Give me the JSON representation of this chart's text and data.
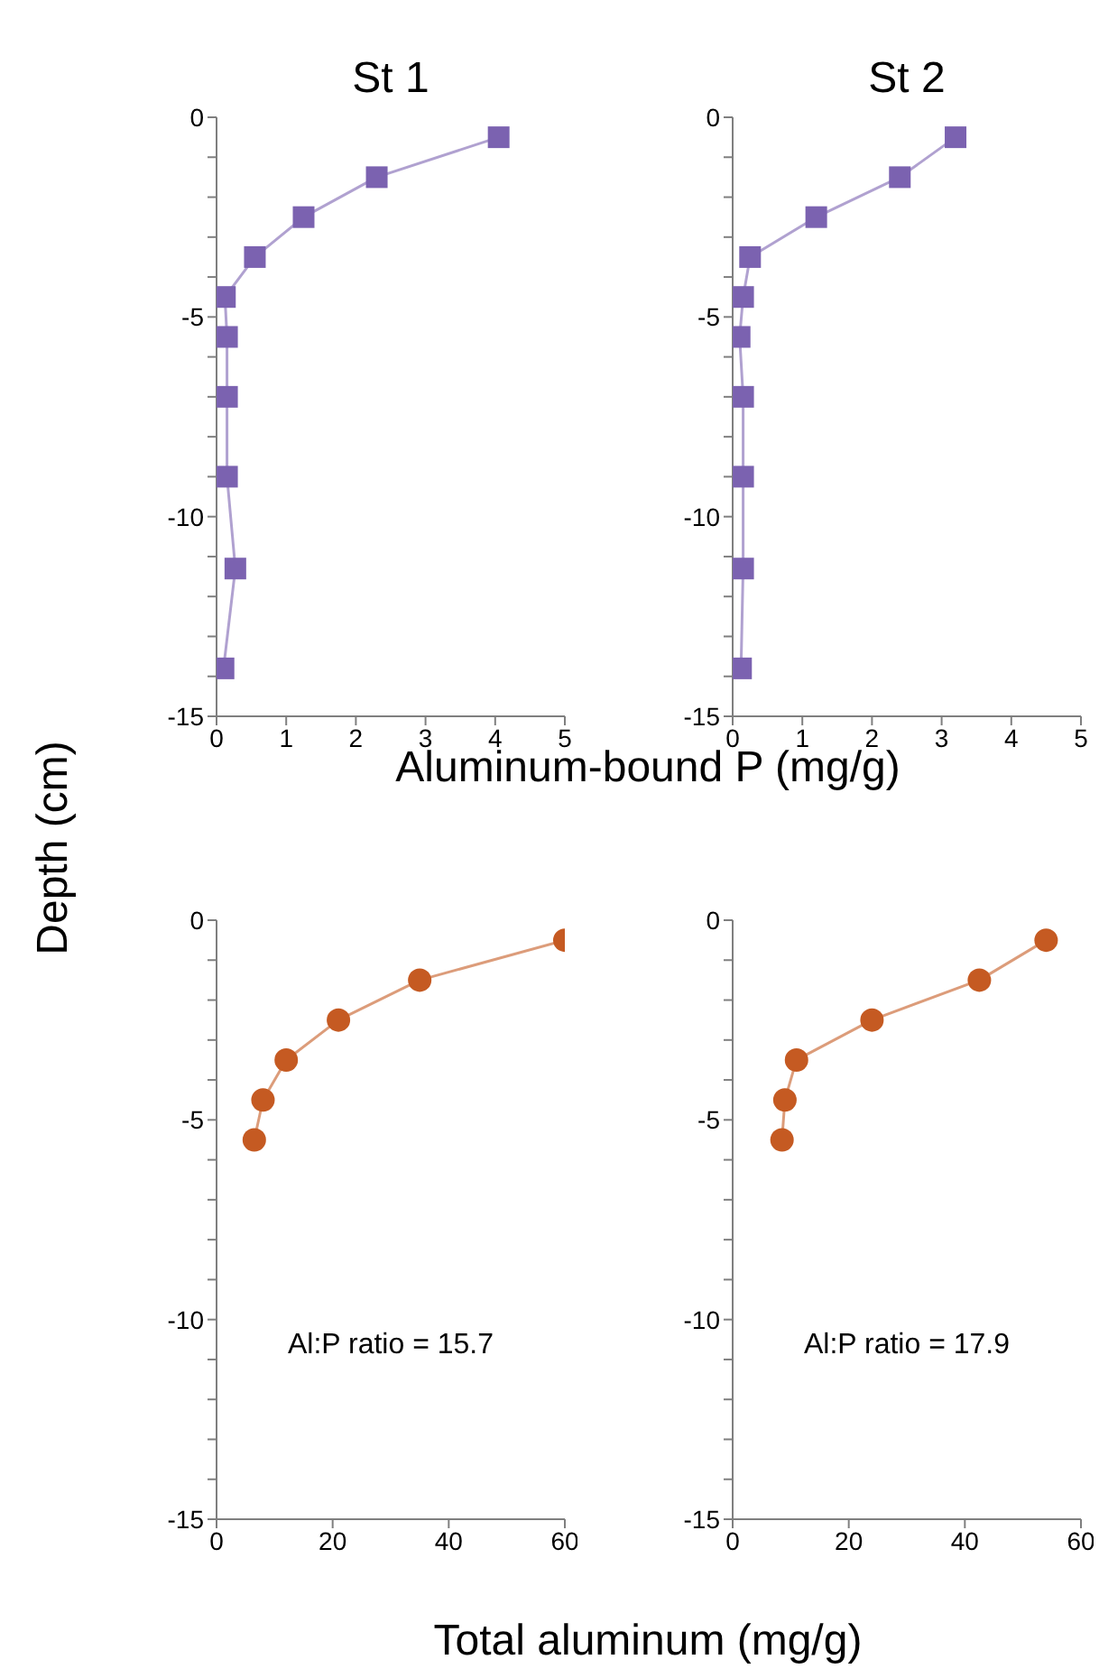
{
  "chart_data": [
    {
      "type": "line",
      "title": "St 1",
      "xlabel": "Aluminum-bound P (mg/g)",
      "ylabel": "Depth (cm)",
      "marker": "square",
      "x": [
        4.05,
        2.3,
        1.25,
        0.55,
        0.12,
        0.15,
        0.15,
        0.15,
        0.27,
        0.1
      ],
      "xlim": [
        0,
        5
      ],
      "xticks": [
        0,
        1,
        2,
        3,
        4,
        5
      ],
      "ylim": [
        -15,
        0
      ],
      "yticks": [
        -15,
        {
          "value": -14,
          "label": null
        },
        {
          "value": -13,
          "label": null
        },
        {
          "value": -12,
          "label": null
        },
        {
          "value": -11,
          "label": null
        },
        -10,
        {
          "value": -9,
          "label": null
        },
        {
          "value": -8,
          "label": null
        },
        {
          "value": -7,
          "label": null
        },
        {
          "value": -6,
          "label": null
        },
        -5,
        {
          "value": -4,
          "label": null
        },
        {
          "value": -3,
          "label": null
        },
        {
          "value": -2,
          "label": null
        },
        {
          "value": -1,
          "label": null
        },
        0
      ],
      "series": [
        {
          "color": "#7b62b0",
          "values": [
            -0.5,
            -1.5,
            -2.5,
            -3.5,
            -4.5,
            -5.5,
            -7,
            -9,
            -11.3,
            -13.8
          ]
        }
      ]
    },
    {
      "type": "line",
      "title": "St 2",
      "marker": "square",
      "x": [
        3.2,
        2.4,
        1.2,
        0.25,
        0.15,
        0.1,
        0.15,
        0.15,
        0.15,
        0.12
      ],
      "xlim": [
        0,
        5
      ],
      "xticks": [
        0,
        1,
        2,
        3,
        4,
        5
      ],
      "ylim": [
        -15,
        0
      ],
      "yticks": [
        -15,
        {
          "value": -14,
          "label": null
        },
        {
          "value": -13,
          "label": null
        },
        {
          "value": -12,
          "label": null
        },
        {
          "value": -11,
          "label": null
        },
        -10,
        {
          "value": -9,
          "label": null
        },
        {
          "value": -8,
          "label": null
        },
        {
          "value": -7,
          "label": null
        },
        {
          "value": -6,
          "label": null
        },
        -5,
        {
          "value": -4,
          "label": null
        },
        {
          "value": -3,
          "label": null
        },
        {
          "value": -2,
          "label": null
        },
        {
          "value": -1,
          "label": null
        },
        0
      ],
      "series": [
        {
          "color": "#7b62b0",
          "values": [
            -0.5,
            -1.5,
            -2.5,
            -3.5,
            -4.5,
            -5.5,
            -7,
            -9,
            -11.3,
            -13.8
          ]
        }
      ]
    },
    {
      "type": "line",
      "xlabel": "Total aluminum (mg/g)",
      "marker": "circle",
      "annotations": [
        "Al:P ratio = 15.7"
      ],
      "x": [
        60,
        35,
        21,
        12,
        8,
        6.5
      ],
      "xlim": [
        0,
        60
      ],
      "xticks": [
        0,
        20,
        40,
        60
      ],
      "ylim": [
        -15,
        0
      ],
      "yticks": [
        -15,
        {
          "value": -14,
          "label": null
        },
        {
          "value": -13,
          "label": null
        },
        {
          "value": -12,
          "label": null
        },
        {
          "value": -11,
          "label": null
        },
        -10,
        {
          "value": -9,
          "label": null
        },
        {
          "value": -8,
          "label": null
        },
        {
          "value": -7,
          "label": null
        },
        {
          "value": -6,
          "label": null
        },
        -5,
        {
          "value": -4,
          "label": null
        },
        {
          "value": -3,
          "label": null
        },
        {
          "value": -2,
          "label": null
        },
        {
          "value": -1,
          "label": null
        },
        0
      ],
      "series": [
        {
          "color": "#c55a22",
          "values": [
            -0.5,
            -1.5,
            -2.5,
            -3.5,
            -4.5,
            -5.5
          ]
        }
      ]
    },
    {
      "type": "line",
      "marker": "circle",
      "annotations": [
        "Al:P ratio = 17.9"
      ],
      "x": [
        54,
        42.5,
        24,
        11,
        9,
        8.5
      ],
      "xlim": [
        0,
        60
      ],
      "xticks": [
        0,
        20,
        40,
        60
      ],
      "ylim": [
        -15,
        0
      ],
      "yticks": [
        -15,
        {
          "value": -14,
          "label": null
        },
        {
          "value": -13,
          "label": null
        },
        {
          "value": -12,
          "label": null
        },
        {
          "value": -11,
          "label": null
        },
        -10,
        {
          "value": -9,
          "label": null
        },
        {
          "value": -8,
          "label": null
        },
        {
          "value": -7,
          "label": null
        },
        {
          "value": -6,
          "label": null
        },
        -5,
        {
          "value": -4,
          "label": null
        },
        {
          "value": -3,
          "label": null
        },
        {
          "value": -2,
          "label": null
        },
        {
          "value": -1,
          "label": null
        },
        0
      ],
      "series": [
        {
          "color": "#c55a22",
          "values": [
            -0.5,
            -1.5,
            -2.5,
            -3.5,
            -4.5,
            -5.5
          ]
        }
      ]
    }
  ]
}
